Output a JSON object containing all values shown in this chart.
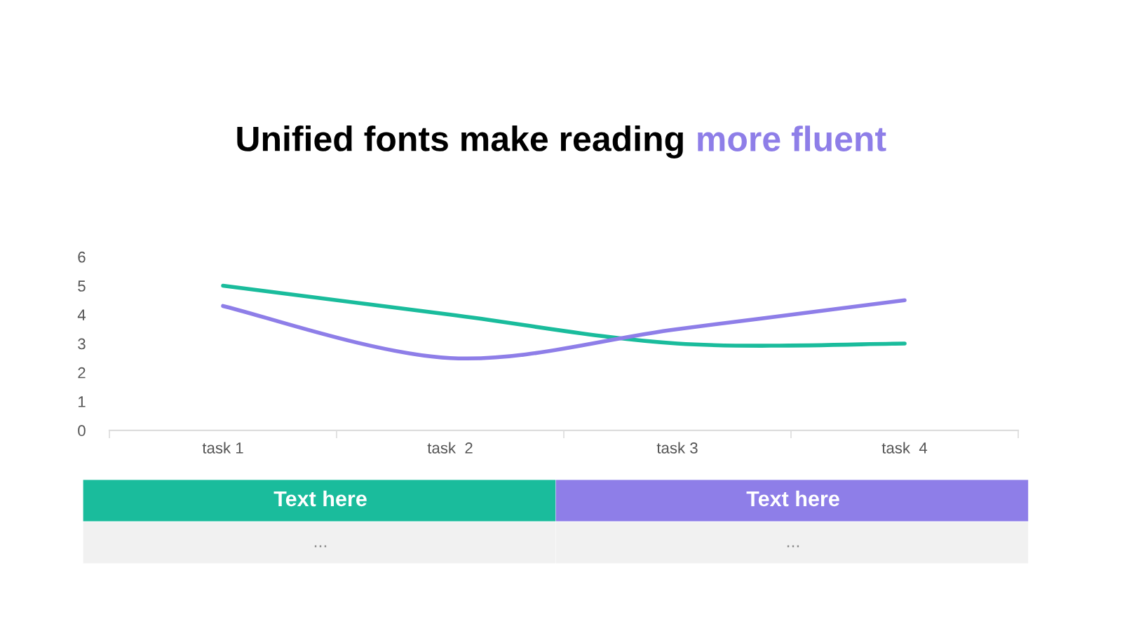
{
  "chart_data": {
    "type": "line",
    "title": "Unified fonts make reading more fluent",
    "categories": [
      "task 1",
      "task  2",
      "task 3",
      "task  4"
    ],
    "series": [
      {
        "name": "Text here",
        "color": "#1abc9c",
        "values": [
          5,
          4,
          3,
          3
        ]
      },
      {
        "name": "Text here",
        "color": "#8e7ee8",
        "values": [
          4.3,
          2.5,
          3.5,
          4.5
        ]
      }
    ],
    "ylim": [
      0,
      6
    ],
    "yticks": [
      0,
      1,
      2,
      3,
      4,
      5,
      6
    ],
    "grid": false,
    "legend": "bottom",
    "marker": "none",
    "line_style": "solid",
    "annotations": [
      "...",
      "..."
    ]
  }
}
